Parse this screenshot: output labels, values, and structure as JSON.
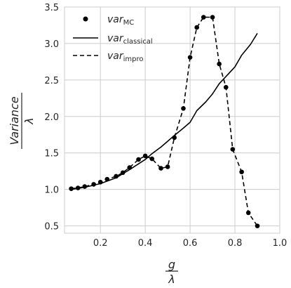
{
  "chart_data": {
    "type": "line",
    "xlim": [
      0.04,
      1.0
    ],
    "ylim": [
      0.4,
      3.5
    ],
    "xticks": [
      "0.2",
      "0.4",
      "0.6",
      "0.8",
      "1.0"
    ],
    "yticks": [
      "0.5",
      "1.0",
      "1.5",
      "2.0",
      "2.5",
      "3.0",
      "3.5"
    ],
    "xlabel_num": "g",
    "xlabel_den": "λ",
    "ylabel_num": "Variance",
    "ylabel_den": "λ",
    "grid": true,
    "legend_position": "top-left",
    "series": [
      {
        "name_main": "var",
        "name_sub": "MC",
        "style": "markers",
        "color": "#000000",
        "points": [
          [
            0.07,
            1.01
          ],
          [
            0.1,
            1.02
          ],
          [
            0.13,
            1.04
          ],
          [
            0.17,
            1.07
          ],
          [
            0.2,
            1.1
          ],
          [
            0.23,
            1.14
          ],
          [
            0.27,
            1.18
          ],
          [
            0.3,
            1.23
          ],
          [
            0.33,
            1.3
          ],
          [
            0.37,
            1.41
          ],
          [
            0.4,
            1.46
          ],
          [
            0.43,
            1.42
          ],
          [
            0.47,
            1.29
          ],
          [
            0.5,
            1.31
          ],
          [
            0.53,
            1.71
          ],
          [
            0.57,
            2.11
          ],
          [
            0.6,
            2.81
          ],
          [
            0.63,
            3.22
          ],
          [
            0.66,
            3.36
          ],
          [
            0.7,
            3.36
          ],
          [
            0.73,
            2.72
          ],
          [
            0.76,
            2.4
          ],
          [
            0.79,
            1.55
          ],
          [
            0.83,
            1.24
          ],
          [
            0.86,
            0.68
          ],
          [
            0.9,
            0.5
          ]
        ]
      },
      {
        "name_main": "var",
        "name_sub": "classical",
        "style": "solid",
        "color": "#000000",
        "points": [
          [
            0.07,
            1.0
          ],
          [
            0.13,
            1.03
          ],
          [
            0.2,
            1.08
          ],
          [
            0.27,
            1.16
          ],
          [
            0.33,
            1.27
          ],
          [
            0.4,
            1.41
          ],
          [
            0.43,
            1.49
          ],
          [
            0.47,
            1.58
          ],
          [
            0.5,
            1.66
          ],
          [
            0.53,
            1.74
          ],
          [
            0.57,
            1.84
          ],
          [
            0.6,
            1.92
          ],
          [
            0.63,
            2.08
          ],
          [
            0.67,
            2.2
          ],
          [
            0.7,
            2.31
          ],
          [
            0.73,
            2.45
          ],
          [
            0.77,
            2.58
          ],
          [
            0.8,
            2.68
          ],
          [
            0.83,
            2.84
          ],
          [
            0.87,
            2.99
          ],
          [
            0.9,
            3.14
          ]
        ]
      },
      {
        "name_main": "var",
        "name_sub": "impro",
        "style": "dashed",
        "color": "#000000",
        "points": [
          [
            0.07,
            1.01
          ],
          [
            0.1,
            1.02
          ],
          [
            0.13,
            1.04
          ],
          [
            0.17,
            1.07
          ],
          [
            0.2,
            1.1
          ],
          [
            0.23,
            1.14
          ],
          [
            0.27,
            1.18
          ],
          [
            0.3,
            1.23
          ],
          [
            0.33,
            1.3
          ],
          [
            0.37,
            1.41
          ],
          [
            0.4,
            1.46
          ],
          [
            0.43,
            1.42
          ],
          [
            0.47,
            1.29
          ],
          [
            0.5,
            1.31
          ],
          [
            0.53,
            1.71
          ],
          [
            0.57,
            2.11
          ],
          [
            0.6,
            2.81
          ],
          [
            0.63,
            3.22
          ],
          [
            0.66,
            3.36
          ],
          [
            0.7,
            3.36
          ],
          [
            0.73,
            2.72
          ],
          [
            0.76,
            2.4
          ],
          [
            0.79,
            1.55
          ],
          [
            0.83,
            1.24
          ],
          [
            0.86,
            0.68
          ],
          [
            0.9,
            0.5
          ]
        ]
      }
    ]
  }
}
